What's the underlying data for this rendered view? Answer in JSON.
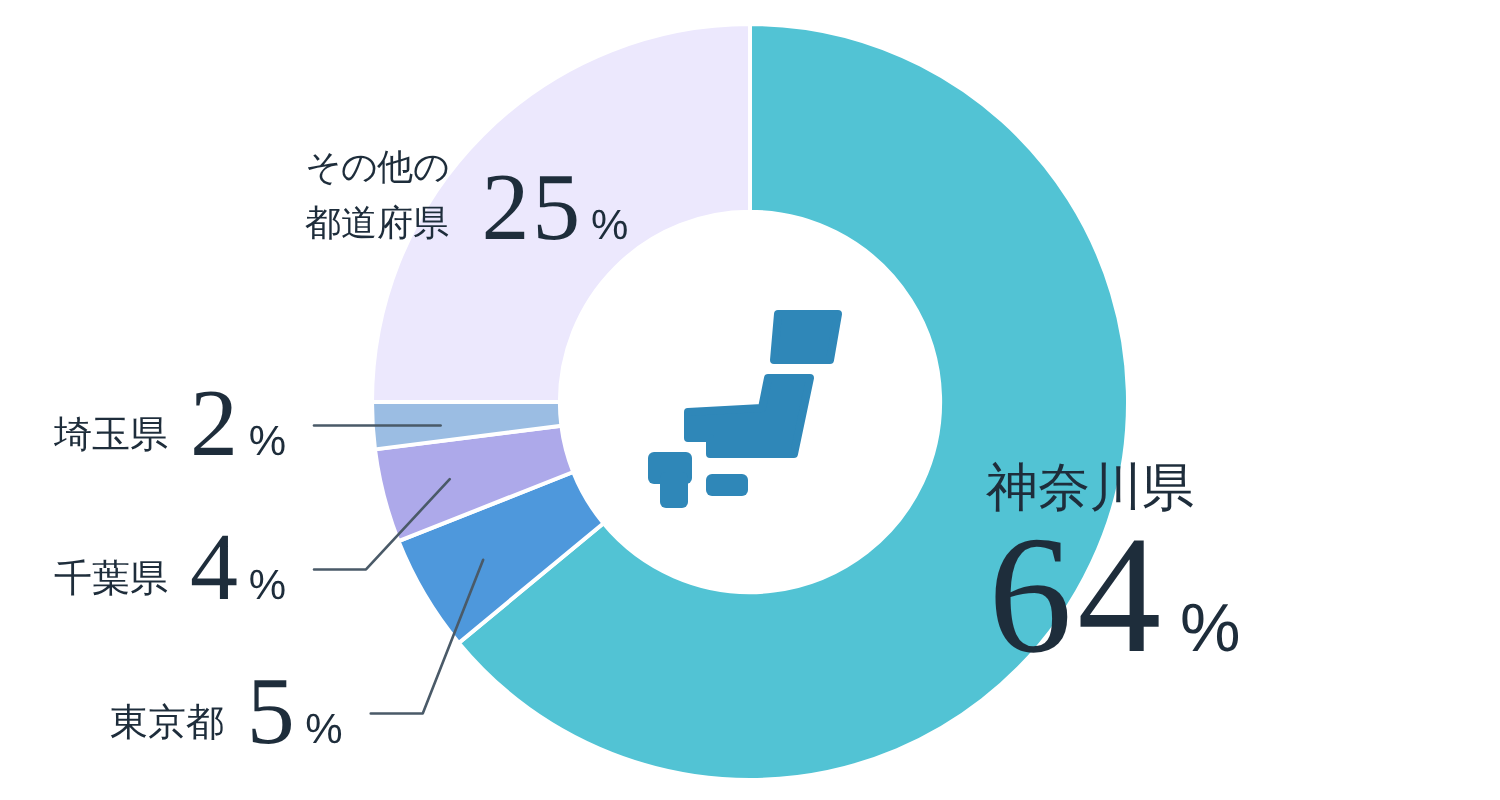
{
  "chart_data": {
    "type": "donut",
    "categories": [
      "神奈川県",
      "東京都",
      "千葉県",
      "埼玉県",
      "その他の都道府県"
    ],
    "values": [
      64,
      5,
      4,
      2,
      25
    ],
    "colors": [
      "#52c3d4",
      "#4e98dc",
      "#ada9ea",
      "#9bbde3",
      "#ece8fd"
    ],
    "value_labels": [
      "64%",
      "5%",
      "4%",
      "2%",
      "25%"
    ]
  }
}
